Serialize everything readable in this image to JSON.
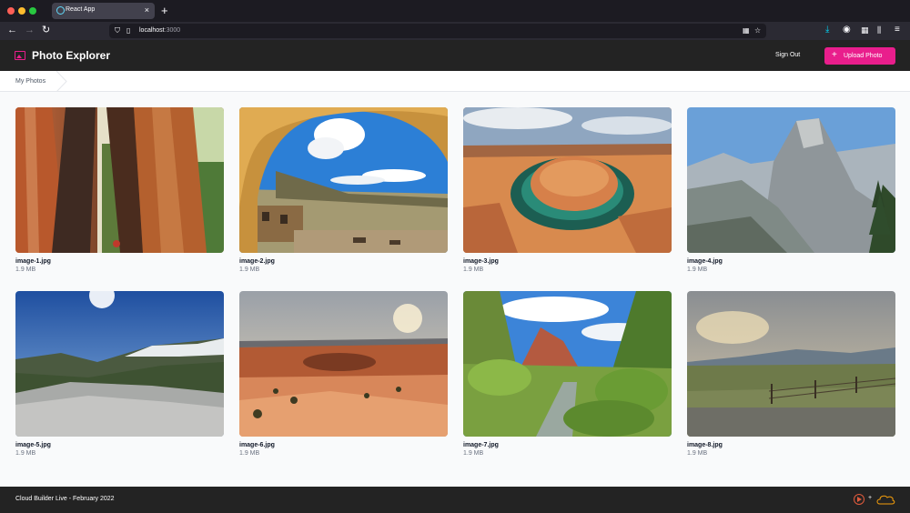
{
  "browser": {
    "tab_title": "React App",
    "tab_close": "×",
    "new_tab": "+",
    "url_host": "localhost",
    "url_port": ":3000",
    "icons": [
      "back-icon",
      "forward-icon",
      "reload-icon",
      "shield-icon",
      "page-icon",
      "qr-icon",
      "bookmark-star-icon",
      "download-icon",
      "account-icon",
      "extensions-icon",
      "library-icon",
      "menu-icon"
    ]
  },
  "header": {
    "title": "Photo Explorer",
    "sign_out": "Sign Out",
    "upload_label": "Upload Photo",
    "upload_plus": "+",
    "accent": "#e91e8c",
    "bg": "#232323"
  },
  "breadcrumb": {
    "items": [
      "My Photos"
    ]
  },
  "photos": [
    {
      "name": "image-1.jpg",
      "size": "1.9 MB",
      "scene": "redwood trees"
    },
    {
      "name": "image-2.jpg",
      "size": "1.9 MB",
      "scene": "cliff dwelling"
    },
    {
      "name": "image-3.jpg",
      "size": "1.9 MB",
      "scene": "horseshoe bend"
    },
    {
      "name": "image-4.jpg",
      "size": "1.9 MB",
      "scene": "half dome"
    },
    {
      "name": "image-5.jpg",
      "size": "1.9 MB",
      "scene": "mountain rock"
    },
    {
      "name": "image-6.jpg",
      "size": "1.9 MB",
      "scene": "red rock desert"
    },
    {
      "name": "image-7.jpg",
      "size": "1.9 MB",
      "scene": "canyon stream"
    },
    {
      "name": "image-8.jpg",
      "size": "1.9 MB",
      "scene": "meadow fence"
    }
  ],
  "footer": {
    "text": "Cloud Builder Live - February 2022",
    "plus": "+"
  }
}
